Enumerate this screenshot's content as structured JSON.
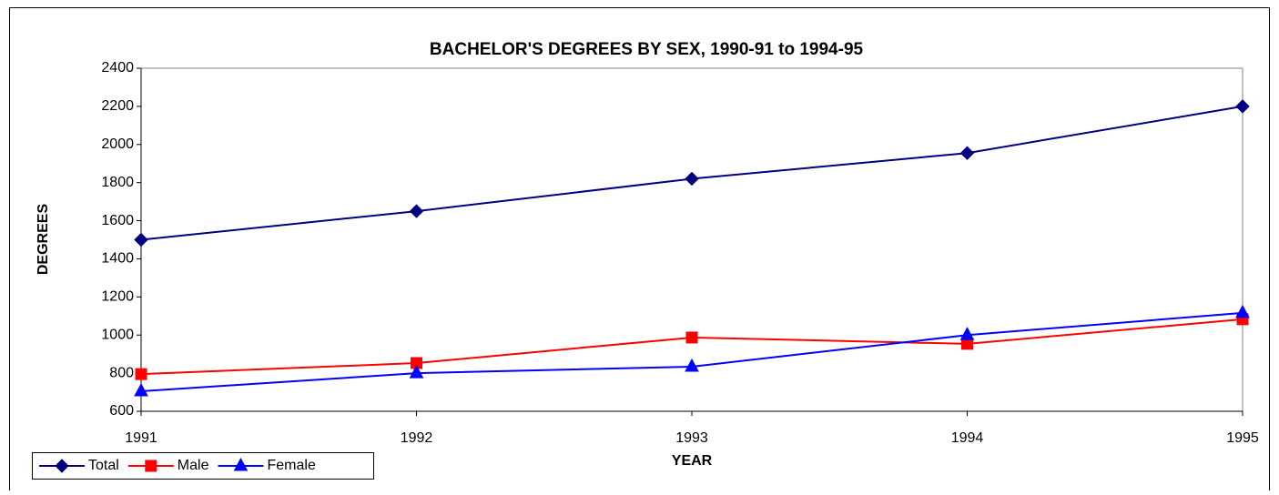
{
  "chart_data": {
    "type": "line",
    "title": "BACHELOR'S DEGREES BY SEX, 1990-91 to 1994-95",
    "x_label": "YEAR",
    "y_label": "DEGREES",
    "x": [
      1991,
      1992,
      1993,
      1994,
      1995
    ],
    "series": [
      {
        "name": "Total",
        "color": "#000080",
        "marker": "diamond",
        "values": [
          1500,
          1650,
          1820,
          1955,
          2200
        ]
      },
      {
        "name": "Male",
        "color": "#ff0000",
        "marker": "square",
        "values": [
          795,
          853,
          987,
          954,
          1083
        ]
      },
      {
        "name": "Female",
        "color": "#0000ff",
        "marker": "triangle",
        "values": [
          705,
          800,
          834,
          1000,
          1116
        ]
      }
    ],
    "xlim": [
      1991,
      1995
    ],
    "xticks": [
      1991,
      1992,
      1993,
      1994,
      1995
    ],
    "ylim": [
      600,
      2400
    ],
    "yticks": [
      600,
      800,
      1000,
      1200,
      1400,
      1600,
      1800,
      2000,
      2200,
      2400
    ],
    "grid": false,
    "legend": "lower left"
  }
}
